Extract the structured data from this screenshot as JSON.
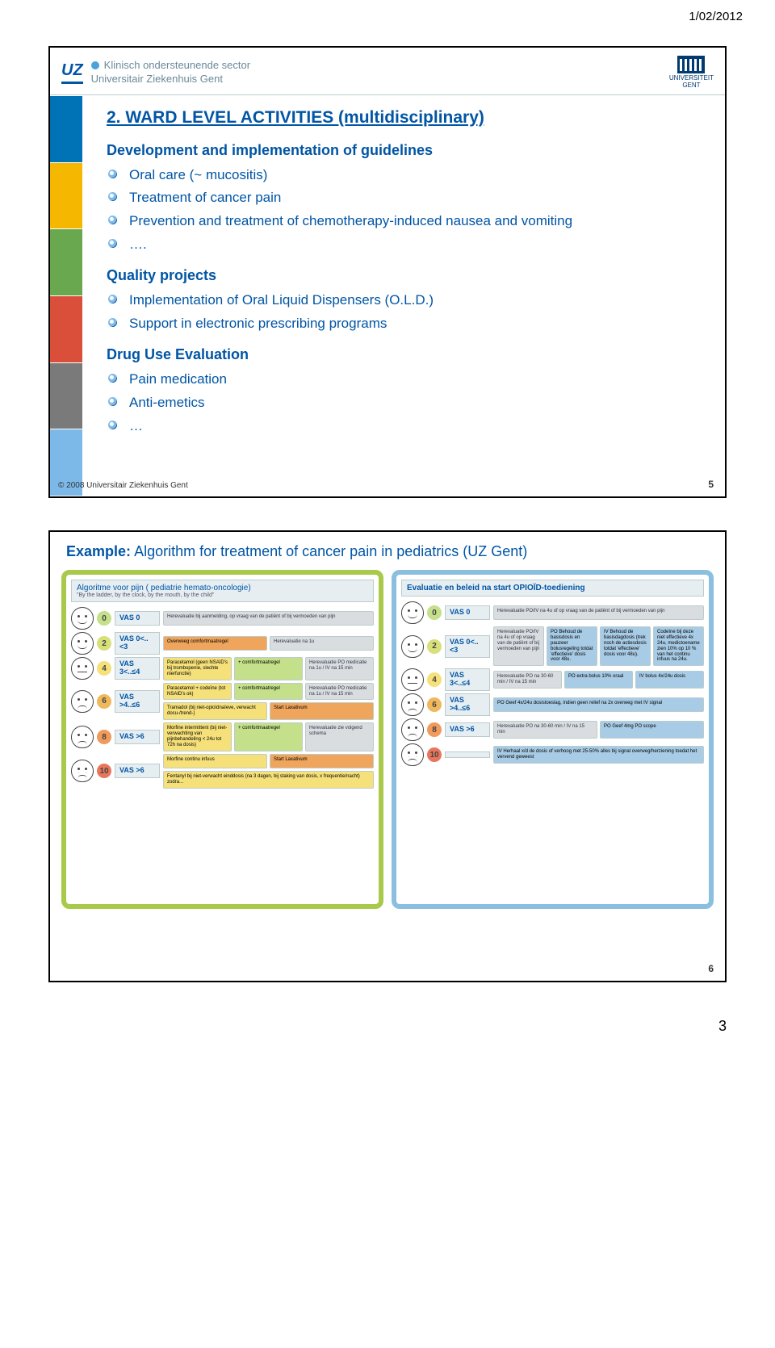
{
  "doc_date": "1/02/2012",
  "page_number": "3",
  "header": {
    "org_abbr": "UZ",
    "sector": "Klinisch ondersteunende sector",
    "org_full": "Universitair Ziekenhuis Gent",
    "univ_label": "UNIVERSITEIT\nGENT"
  },
  "slide1": {
    "title": "2. WARD LEVEL ACTIVITIES (multidisciplinary)",
    "title_color": "#0055a5",
    "sections": [
      {
        "label": "Development and implementation of guidelines",
        "items": [
          "Oral care (~ mucositis)",
          "Treatment of cancer pain",
          "Prevention and treatment of chemotherapy-induced nausea and vomiting",
          "…."
        ]
      },
      {
        "label": "Quality projects",
        "items": [
          "Implementation of Oral Liquid Dispensers  (O.L.D.)",
          "Support  in electronic prescribing programs"
        ]
      },
      {
        "label": "Drug Use Evaluation",
        "items": [
          "Pain medication",
          "Anti-emetics",
          "…"
        ]
      }
    ],
    "footer": "© 2008 Universitair Ziekenhuis Gent",
    "slide_num": "5",
    "left_bar_colors": [
      "#0073b7",
      "#f5b700",
      "#6aa84f",
      "#d94f3a",
      "#7a7a7a",
      "#7db9e8"
    ]
  },
  "slide2": {
    "example_label": "Example:",
    "example_text": "Algorithm for treatment of cancer pain in pediatrics (UZ Gent)",
    "left_col": {
      "header_main": "Algoritme voor pijn ( pediatrie hemato-oncologie)",
      "header_sub": "\"By the ladder, by the clock, by the mouth, by the child\"",
      "rows": [
        {
          "score": "0",
          "badge_bg": "#c4e08a",
          "vas": "VAS 0",
          "face": "happy",
          "boxes": [
            {
              "cls": "ab-gray",
              "text": "Herevaluatie bij aanmelding, op vraag van de patiënt of bij vermoeden van pijn"
            }
          ]
        },
        {
          "score": "2",
          "badge_bg": "#d8e07a",
          "vas": "VAS 0<..<3",
          "face": "happy",
          "boxes": [
            {
              "cls": "ab-orange",
              "text": "Overweeg comfortmaatregel"
            },
            {
              "cls": "ab-gray",
              "text": "Herevaluatie na 1u"
            }
          ]
        },
        {
          "score": "4",
          "badge_bg": "#f5e07a",
          "vas": "VAS 3<..≤4",
          "face": "flat",
          "boxes": [
            {
              "cls": "ab-yellow",
              "text": "Paracetamol (geen NSAID's bij trombopenie, slechte nierfunctie)"
            },
            {
              "cls": "ab-green",
              "text": "+ comfortmaatregel"
            },
            {
              "cls": "ab-gray",
              "text": "Herevaluatie PO medicatie na 1u / IV na 15 min"
            }
          ]
        },
        {
          "score": "6",
          "badge_bg": "#f0b85c",
          "vas": "VAS >4..≤6",
          "face": "sad",
          "boxes": [
            {
              "cls": "ab-yellow",
              "text": "Paracetamol + codeïne (tot NSAID's ok)"
            },
            {
              "cls": "ab-green",
              "text": "+ comfortmaatregel"
            },
            {
              "cls": "ab-gray",
              "text": "Herevaluatie PO medicatie na 1u / IV na 15 min"
            }
          ],
          "extra": [
            {
              "cls": "ab-yellow",
              "text": "Tramadol (bij niet-opioïdnaïeve, verwacht docu-/trend-)\n"
            },
            {
              "cls": "ab-orange",
              "text": "Start Laxativum"
            }
          ]
        },
        {
          "score": "8",
          "badge_bg": "#f09a5c",
          "vas": "VAS >6",
          "face": "sad",
          "boxes": [
            {
              "cls": "ab-yellow",
              "text": "Morfine intermittent (bij niet-verwachting van pijnbehandeling < 24u tot 72h na dosis)"
            },
            {
              "cls": "ab-green",
              "text": "+ comfortmaatregel"
            },
            {
              "cls": "ab-gray",
              "text": "Herevaluatie zie volgend schema"
            }
          ]
        },
        {
          "score": "10",
          "badge_bg": "#e8765c",
          "vas": "VAS >6",
          "face": "cry sad",
          "boxes": [
            {
              "cls": "ab-yellow",
              "text": "Morfine continu infuus"
            },
            {
              "cls": "ab-orange",
              "text": "Start Laxativum"
            }
          ],
          "extra": [
            {
              "cls": "ab-yellow",
              "text": "Fentanyl bij niet-verwacht einddosis (na 3 dagen, bij staking van dosis, x frequentie/nacht) zodra..."
            }
          ]
        }
      ]
    },
    "right_col": {
      "header_main": "Evaluatie en beleid na start OPIOÏD-toediening",
      "rows": [
        {
          "score": "0",
          "badge_bg": "#c4e08a",
          "vas": "VAS 0",
          "face": "happy",
          "boxes": [
            {
              "cls": "ab-gray",
              "text": "Herevaluatie PO/IV na 4u of op vraag van de patiënt of bij vermoeden van pijn"
            }
          ]
        },
        {
          "score": "2",
          "badge_bg": "#d8e07a",
          "vas": "VAS 0<..<3",
          "face": "happy",
          "boxes": [
            {
              "cls": "ab-gray",
              "text": "Herevaluatie PO/IV na 4u of op vraag van de patiënt of bij vermoeden van pijn"
            },
            {
              "cls": "ab-blue",
              "text": "PO Behoud de basisdosis en pauzeer bolusregeling totdat 'effectieve' dosis voor 48u."
            },
            {
              "cls": "ab-blue",
              "text": "IV Behoud de basisdagdosis (trek noch de actiesdosis totdat 'effectieve' dosis voor 48u)."
            },
            {
              "cls": "ab-blue",
              "text": "Codeïne bij deze niet effectieve 4x 24u, medictoename zien 10% op 10 % van het continu infuus na 24u."
            }
          ]
        },
        {
          "score": "4",
          "badge_bg": "#f5e07a",
          "vas": "VAS 3<..≤4",
          "face": "flat",
          "boxes": [
            {
              "cls": "ab-gray",
              "text": "Herevaluatie PO na 30-60 min / IV na 15 min"
            },
            {
              "cls": "ab-blue",
              "text": "PO extra bolus 10% oraal"
            },
            {
              "cls": "ab-blue",
              "text": "IV bolus 4x/24u dosis"
            }
          ]
        },
        {
          "score": "6",
          "badge_bg": "#f0b85c",
          "vas": "VAS >4..≤6",
          "face": "sad",
          "boxes": [
            {
              "cls": "ab-blue",
              "text": "PO Geef 4x/24u dosistoeslag, indien geen relief na 2x overweg met IV signal"
            }
          ]
        },
        {
          "score": "8",
          "badge_bg": "#f09a5c",
          "vas": "VAS >6",
          "face": "sad",
          "boxes": [
            {
              "cls": "ab-gray",
              "text": "Herevaluatie PO na 30-60 min / IV na 15 min"
            },
            {
              "cls": "ab-blue",
              "text": "PO Geef 4mg PO scope"
            }
          ]
        },
        {
          "score": "10",
          "badge_bg": "#e8765c",
          "vas": "",
          "face": "cry sad",
          "boxes": [
            {
              "cls": "ab-blue",
              "text": "IV Herhaal x/d de dosis of verhoog met 25-50% alles bij signal overweg/herziening toedat het vervend geweest"
            }
          ]
        }
      ]
    },
    "slide_num": "6"
  }
}
